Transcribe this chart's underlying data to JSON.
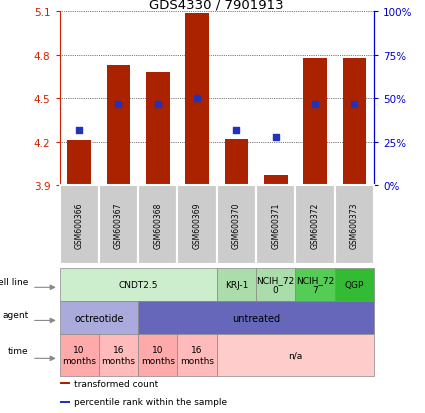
{
  "title": "GDS4330 / 7901913",
  "samples": [
    "GSM600366",
    "GSM600367",
    "GSM600368",
    "GSM600369",
    "GSM600370",
    "GSM600371",
    "GSM600372",
    "GSM600373"
  ],
  "bar_bottoms": [
    3.9,
    3.9,
    3.9,
    3.9,
    3.9,
    3.9,
    3.9,
    3.9
  ],
  "bar_tops": [
    4.21,
    4.73,
    4.68,
    5.09,
    4.22,
    3.97,
    4.78,
    4.78
  ],
  "percentile_ranks": [
    32,
    47,
    47,
    50,
    32,
    28,
    47,
    47
  ],
  "ylim_left": [
    3.9,
    5.1
  ],
  "ylim_right": [
    0,
    100
  ],
  "yticks_left": [
    3.9,
    4.2,
    4.5,
    4.8,
    5.1
  ],
  "yticks_right": [
    0,
    25,
    50,
    75,
    100
  ],
  "ytick_labels_right": [
    "0%",
    "25%",
    "50%",
    "75%",
    "100%"
  ],
  "bar_color": "#aa2200",
  "dot_color": "#2233bb",
  "bar_width": 0.6,
  "cell_line_groups": [
    {
      "label": "CNDT2.5",
      "start": 0,
      "end": 3,
      "color": "#cceecc"
    },
    {
      "label": "KRJ-1",
      "start": 4,
      "end": 4,
      "color": "#aaddaa"
    },
    {
      "label": "NCIH_72\n0",
      "start": 5,
      "end": 5,
      "color": "#aaddaa"
    },
    {
      "label": "NCIH_72\n7",
      "start": 6,
      "end": 6,
      "color": "#55cc55"
    },
    {
      "label": "QGP",
      "start": 7,
      "end": 7,
      "color": "#33bb33"
    }
  ],
  "agent_groups": [
    {
      "label": "octreotide",
      "start": 0,
      "end": 1,
      "color": "#aaaadd"
    },
    {
      "label": "untreated",
      "start": 2,
      "end": 7,
      "color": "#6666bb"
    }
  ],
  "time_groups": [
    {
      "label": "10\nmonths",
      "start": 0,
      "end": 0,
      "color": "#ffaaaa"
    },
    {
      "label": "16\nmonths",
      "start": 1,
      "end": 1,
      "color": "#ffbbbb"
    },
    {
      "label": "10\nmonths",
      "start": 2,
      "end": 2,
      "color": "#ffaaaa"
    },
    {
      "label": "16\nmonths",
      "start": 3,
      "end": 3,
      "color": "#ffbbbb"
    },
    {
      "label": "n/a",
      "start": 4,
      "end": 7,
      "color": "#ffcccc"
    }
  ],
  "legend_items": [
    {
      "label": "transformed count",
      "color": "#aa2200"
    },
    {
      "label": "percentile rank within the sample",
      "color": "#2233bb"
    }
  ],
  "row_labels": [
    "cell line",
    "agent",
    "time"
  ],
  "sample_box_color": "#cccccc",
  "left_tick_color": "#cc2200",
  "right_tick_color": "#0000cc"
}
